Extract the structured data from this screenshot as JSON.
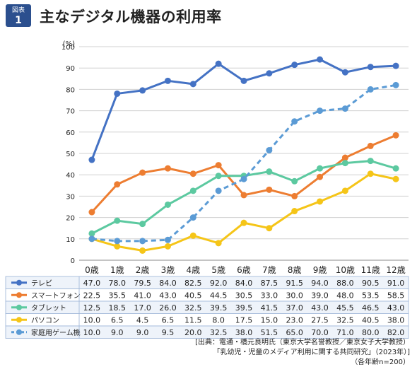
{
  "header": {
    "badge_top": "図表",
    "badge_num": "1",
    "title": "主なデジタル機器の利用率"
  },
  "chart_data": {
    "type": "line",
    "ylabel": "(%)",
    "ylim": [
      0,
      100
    ],
    "yticks": [
      0,
      10,
      20,
      30,
      40,
      50,
      60,
      70,
      80,
      90,
      100
    ],
    "categories": [
      "0歳",
      "1歳",
      "2歳",
      "3歳",
      "4歳",
      "5歳",
      "6歳",
      "7歳",
      "8歳",
      "9歳",
      "10歳",
      "11歳",
      "12歳"
    ],
    "grid": true,
    "legend": "table-below",
    "series": [
      {
        "name": "テレビ",
        "color": "#4472c4",
        "dashed": false,
        "values": [
          47.0,
          78.0,
          79.5,
          84.0,
          82.5,
          92.0,
          84.0,
          87.5,
          91.5,
          94.0,
          88.0,
          90.5,
          91.0
        ],
        "labels": [
          "47.0",
          "78.0",
          "79.5",
          "84.0",
          "82.5",
          "92.0",
          "84.0",
          "87.5",
          "91.5",
          "94.0",
          "88.0",
          "90.5",
          "91.0"
        ]
      },
      {
        "name": "スマートフォン",
        "color": "#ed7d31",
        "dashed": false,
        "values": [
          22.5,
          35.5,
          41.0,
          43.0,
          40.5,
          44.5,
          30.5,
          33.0,
          30.0,
          39.0,
          48.0,
          53.5,
          58.5
        ],
        "labels": [
          "22.5",
          "35.5",
          "41.0",
          "43.0",
          "40.5",
          "44.5",
          "30.5",
          "33.0",
          "30.0",
          "39.0",
          "48.0",
          "53.5",
          "58.5"
        ]
      },
      {
        "name": "タブレット",
        "color": "#5cc9a0",
        "dashed": false,
        "values": [
          12.5,
          18.5,
          17.0,
          26.0,
          32.5,
          39.5,
          39.5,
          41.5,
          37.0,
          43.0,
          45.5,
          46.5,
          43.0
        ],
        "labels": [
          "12.5",
          "18.5",
          "17.0",
          "26.0",
          "32.5",
          "39.5",
          "39.5",
          "41.5",
          "37.0",
          "43.0",
          "45.5",
          "46.5",
          "43.0"
        ]
      },
      {
        "name": "パソコン",
        "color": "#f5c518",
        "dashed": false,
        "values": [
          10.0,
          6.5,
          4.5,
          6.5,
          11.5,
          8.0,
          17.5,
          15.0,
          23.0,
          27.5,
          32.5,
          40.5,
          38.0
        ],
        "labels": [
          "10.0",
          "6.5",
          "4.5",
          "6.5",
          "11.5",
          "8.0",
          "17.5",
          "15.0",
          "23.0",
          "27.5",
          "32.5",
          "40.5",
          "38.0"
        ]
      },
      {
        "name": "家庭用ゲーム機",
        "color": "#5b9bd5",
        "dashed": true,
        "values": [
          10.0,
          9.0,
          9.0,
          9.5,
          20.0,
          32.5,
          38.0,
          51.5,
          65.0,
          70.0,
          71.0,
          80.0,
          82.0
        ],
        "labels": [
          "10.0",
          "9.0",
          "9.0",
          "9.5",
          "20.0",
          "32.5",
          "38.0",
          "51.5",
          "65.0",
          "70.0",
          "71.0",
          "80.0",
          "82.0"
        ]
      }
    ]
  },
  "source": {
    "line1": "[出典：電通・橋元良明氏（東京大学名誉教授／東京女子大学教授）",
    "line2": "「乳幼児・児童のメディア利用に関する共同研究」（2023年）]",
    "line3": "（各年齢n=200）"
  },
  "colors": {
    "badge_bg": "#2b4f8e",
    "table_border": "#9bb3d6",
    "row_bg_a": "#eef3fa",
    "row_bg_b": "#ffffff"
  }
}
